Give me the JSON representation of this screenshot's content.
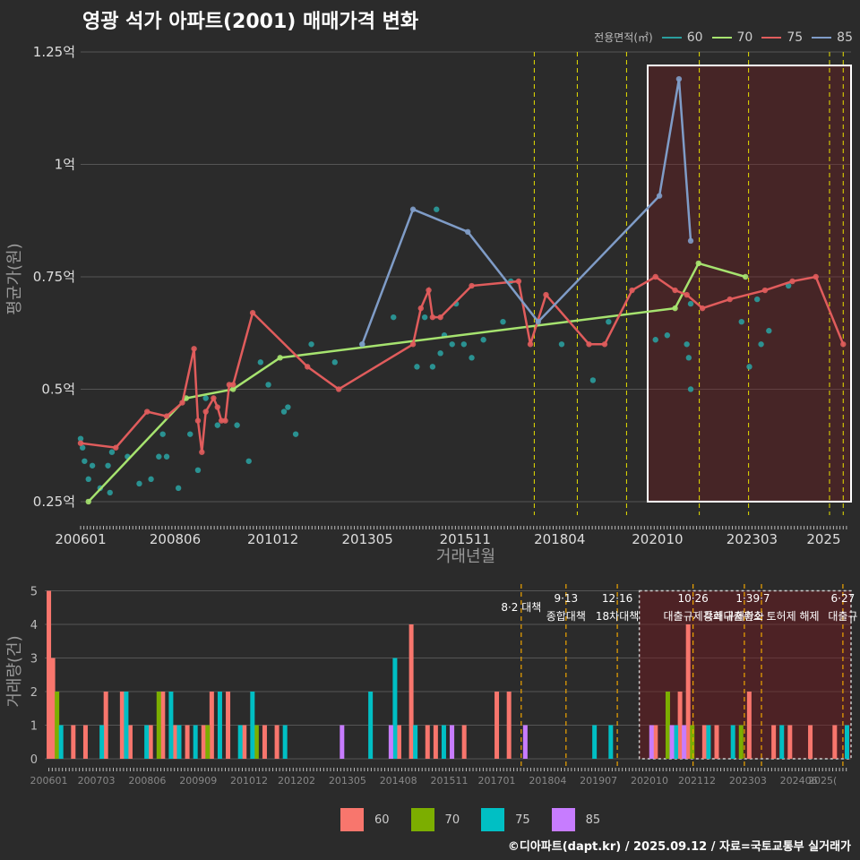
{
  "title": "영광 석가 아파트(2001) 매매가격 변화",
  "credit": "©디아파트(dapt.kr) / 2025.09.12 / 자료=국토교통부 실거래가",
  "legend_title": "전용면적(㎡)",
  "series_colors": {
    "60": "#2a9d9d",
    "70": "#a6e36f",
    "75": "#e05c5c",
    "85": "#7f9cc7"
  },
  "bar_colors": {
    "60": "#f8766d",
    "70": "#7cae00",
    "75": "#00bfc4",
    "85": "#c77cff"
  },
  "chart_data": [
    {
      "type": "line",
      "ylabel": "평균가(원)",
      "xlabel": "거래년월",
      "y_ticks": [
        {
          "v": 0.25,
          "label": "0.25억"
        },
        {
          "v": 0.5,
          "label": "0.5억"
        },
        {
          "v": 0.75,
          "label": "0.75억"
        },
        {
          "v": 1.0,
          "label": "1억"
        },
        {
          "v": 1.25,
          "label": "1.25억"
        }
      ],
      "x_ticks": [
        "200601",
        "200806",
        "201012",
        "201305",
        "201511",
        "201804",
        "202010",
        "202303",
        "2025"
      ],
      "highlight_box": {
        "from": "2020.5",
        "to": "2025.7",
        "ymin": 0.25,
        "ymax": 1.22
      },
      "policy_lines": [
        2017.6,
        2018.7,
        2019.96,
        2021.82,
        2023.08,
        2025.15,
        2025.5
      ],
      "series": [
        {
          "name": "60",
          "x": [
            2006.0,
            2006.05,
            2006.1,
            2006.2,
            2006.3,
            2006.5,
            2006.7,
            2006.75,
            2006.8,
            2007.2,
            2007.5,
            2007.8,
            2008.0,
            2008.1,
            2008.2,
            2008.5,
            2008.8,
            2009.0,
            2009.2,
            2009.5,
            2010.0,
            2010.3,
            2010.6,
            2010.8,
            2011.2,
            2011.3,
            2011.5,
            2011.9,
            2012.5,
            2013.2,
            2014.0,
            2014.6,
            2014.8,
            2015.0,
            2015.1,
            2015.2,
            2015.3,
            2015.5,
            2015.6,
            2015.8,
            2016.0,
            2016.3,
            2016.8,
            2017.0,
            2018.3,
            2019.1,
            2019.5,
            2020.7,
            2021.0,
            2021.5,
            2021.55,
            2021.6,
            2021.6,
            2022.9,
            2023.1,
            2023.3,
            2023.4,
            2023.6,
            2024.1
          ],
          "y": [
            0.39,
            0.37,
            0.34,
            0.3,
            0.33,
            0.28,
            0.33,
            0.27,
            0.36,
            0.35,
            0.29,
            0.3,
            0.35,
            0.4,
            0.35,
            0.28,
            0.4,
            0.32,
            0.48,
            0.42,
            0.42,
            0.34,
            0.56,
            0.51,
            0.45,
            0.46,
            0.4,
            0.6,
            0.56,
            0.6,
            0.66,
            0.55,
            0.66,
            0.55,
            0.9,
            0.58,
            0.62,
            0.6,
            0.69,
            0.6,
            0.57,
            0.61,
            0.65,
            0.74,
            0.6,
            0.52,
            0.65,
            0.61,
            0.62,
            0.6,
            0.57,
            0.5,
            0.69,
            0.65,
            0.55,
            0.7,
            0.6,
            0.63,
            0.73
          ]
        },
        {
          "name": "70",
          "x": [
            2006.2,
            2008.7,
            2009.9,
            2011.1,
            2021.2,
            2021.8,
            2023.0
          ],
          "y": [
            0.25,
            0.48,
            0.5,
            0.57,
            0.68,
            0.78,
            0.75
          ]
        },
        {
          "name": "75",
          "x": [
            2006.0,
            2006.9,
            2007.7,
            2008.2,
            2008.6,
            2008.9,
            2009.0,
            2009.1,
            2009.2,
            2009.4,
            2009.5,
            2009.6,
            2009.7,
            2009.8,
            2009.9,
            2010.4,
            2011.8,
            2012.6,
            2014.5,
            2014.7,
            2014.9,
            2015.0,
            2015.2,
            2016.0,
            2017.2,
            2017.5,
            2017.9,
            2019.0,
            2019.4,
            2020.1,
            2020.7,
            2021.2,
            2021.5,
            2021.9,
            2022.6,
            2023.5,
            2024.2,
            2024.8,
            2025.5
          ],
          "y": [
            0.38,
            0.37,
            0.45,
            0.44,
            0.47,
            0.59,
            0.43,
            0.36,
            0.45,
            0.48,
            0.46,
            0.43,
            0.43,
            0.51,
            0.51,
            0.67,
            0.55,
            0.5,
            0.6,
            0.68,
            0.72,
            0.66,
            0.66,
            0.73,
            0.74,
            0.6,
            0.71,
            0.6,
            0.6,
            0.72,
            0.75,
            0.72,
            0.71,
            0.68,
            0.7,
            0.72,
            0.74,
            0.75,
            0.6
          ]
        },
        {
          "name": "85",
          "x": [
            2013.2,
            2014.5,
            2015.9,
            2017.7,
            2020.8,
            2021.3,
            2021.6
          ],
          "y": [
            0.6,
            0.9,
            0.85,
            0.65,
            0.93,
            1.19,
            0.83
          ]
        }
      ]
    },
    {
      "type": "bar",
      "ylabel": "거래량(건)",
      "y_ticks": [
        0,
        1,
        2,
        3,
        4,
        5
      ],
      "x_ticks": [
        "200601",
        "200703",
        "200806",
        "200909",
        "201012",
        "201202",
        "201305",
        "201408",
        "201511",
        "201701",
        "201804",
        "201907",
        "202010",
        "202112",
        "202303",
        "202406",
        "2025("
      ],
      "highlight_box": {
        "from": "2020.5",
        "to": "2025.7"
      },
      "annotations": [
        {
          "at": 2017.6,
          "date": "",
          "text": "8·2 대책"
        },
        {
          "at": 2018.7,
          "date": "9·13",
          "text": "종합대책"
        },
        {
          "at": 2019.96,
          "date": "12·16",
          "text": "18차대책"
        },
        {
          "at": 2021.82,
          "date": "10·26",
          "text": "대출규제강화"
        },
        {
          "at": 2023.08,
          "date": "1·3",
          "text": "규제완화"
        },
        {
          "at": 2023.5,
          "date": "9·7",
          "text": "특례대출축소 토허제 해제"
        },
        {
          "at": 2025.5,
          "date": "6·27",
          "text": "대출규"
        }
      ],
      "series": [
        {
          "name": "60",
          "x": [
            2006.0,
            2006.1,
            2006.6,
            2006.9,
            2007.4,
            2007.8,
            2008.0,
            2008.5,
            2008.8,
            2009.1,
            2009.4,
            2009.8,
            2010.0,
            2010.4,
            2010.8,
            2011.3,
            2011.6,
            2014.6,
            2014.9,
            2015.3,
            2015.5,
            2015.9,
            2016.2,
            2017.0,
            2017.3,
            2020.9,
            2021.5,
            2021.7,
            2022.1,
            2022.4,
            2023.2,
            2023.8,
            2024.2,
            2024.7,
            2025.3
          ],
          "y": [
            5,
            3,
            1,
            1,
            2,
            2,
            1,
            1,
            2,
            1,
            1,
            1,
            2,
            2,
            1,
            1,
            1,
            1,
            4,
            1,
            1,
            1,
            1,
            2,
            2,
            1,
            2,
            4,
            1,
            1,
            2,
            1,
            1,
            1,
            1
          ]
        },
        {
          "name": "70",
          "x": [
            2006.2,
            2008.7,
            2009.9,
            2011.1,
            2021.2,
            2021.8,
            2023.0
          ],
          "y": [
            2,
            2,
            1,
            1,
            2,
            1,
            1
          ]
        },
        {
          "name": "75",
          "x": [
            2006.3,
            2007.3,
            2007.9,
            2008.4,
            2009.0,
            2009.2,
            2009.6,
            2010.2,
            2010.7,
            2011.0,
            2011.8,
            2013.9,
            2014.5,
            2015.0,
            2015.7,
            2019.4,
            2019.8,
            2021.4,
            2022.2,
            2022.8,
            2024.0,
            2025.6
          ],
          "y": [
            1,
            1,
            2,
            1,
            2,
            1,
            1,
            2,
            1,
            2,
            1,
            2,
            3,
            1,
            1,
            1,
            1,
            1,
            1,
            1,
            1,
            1
          ]
        },
        {
          "name": "85",
          "x": [
            2013.2,
            2014.4,
            2015.9,
            2017.7,
            2020.8,
            2021.3,
            2021.6
          ],
          "y": [
            1,
            1,
            1,
            1,
            1,
            1,
            1
          ]
        }
      ]
    }
  ]
}
